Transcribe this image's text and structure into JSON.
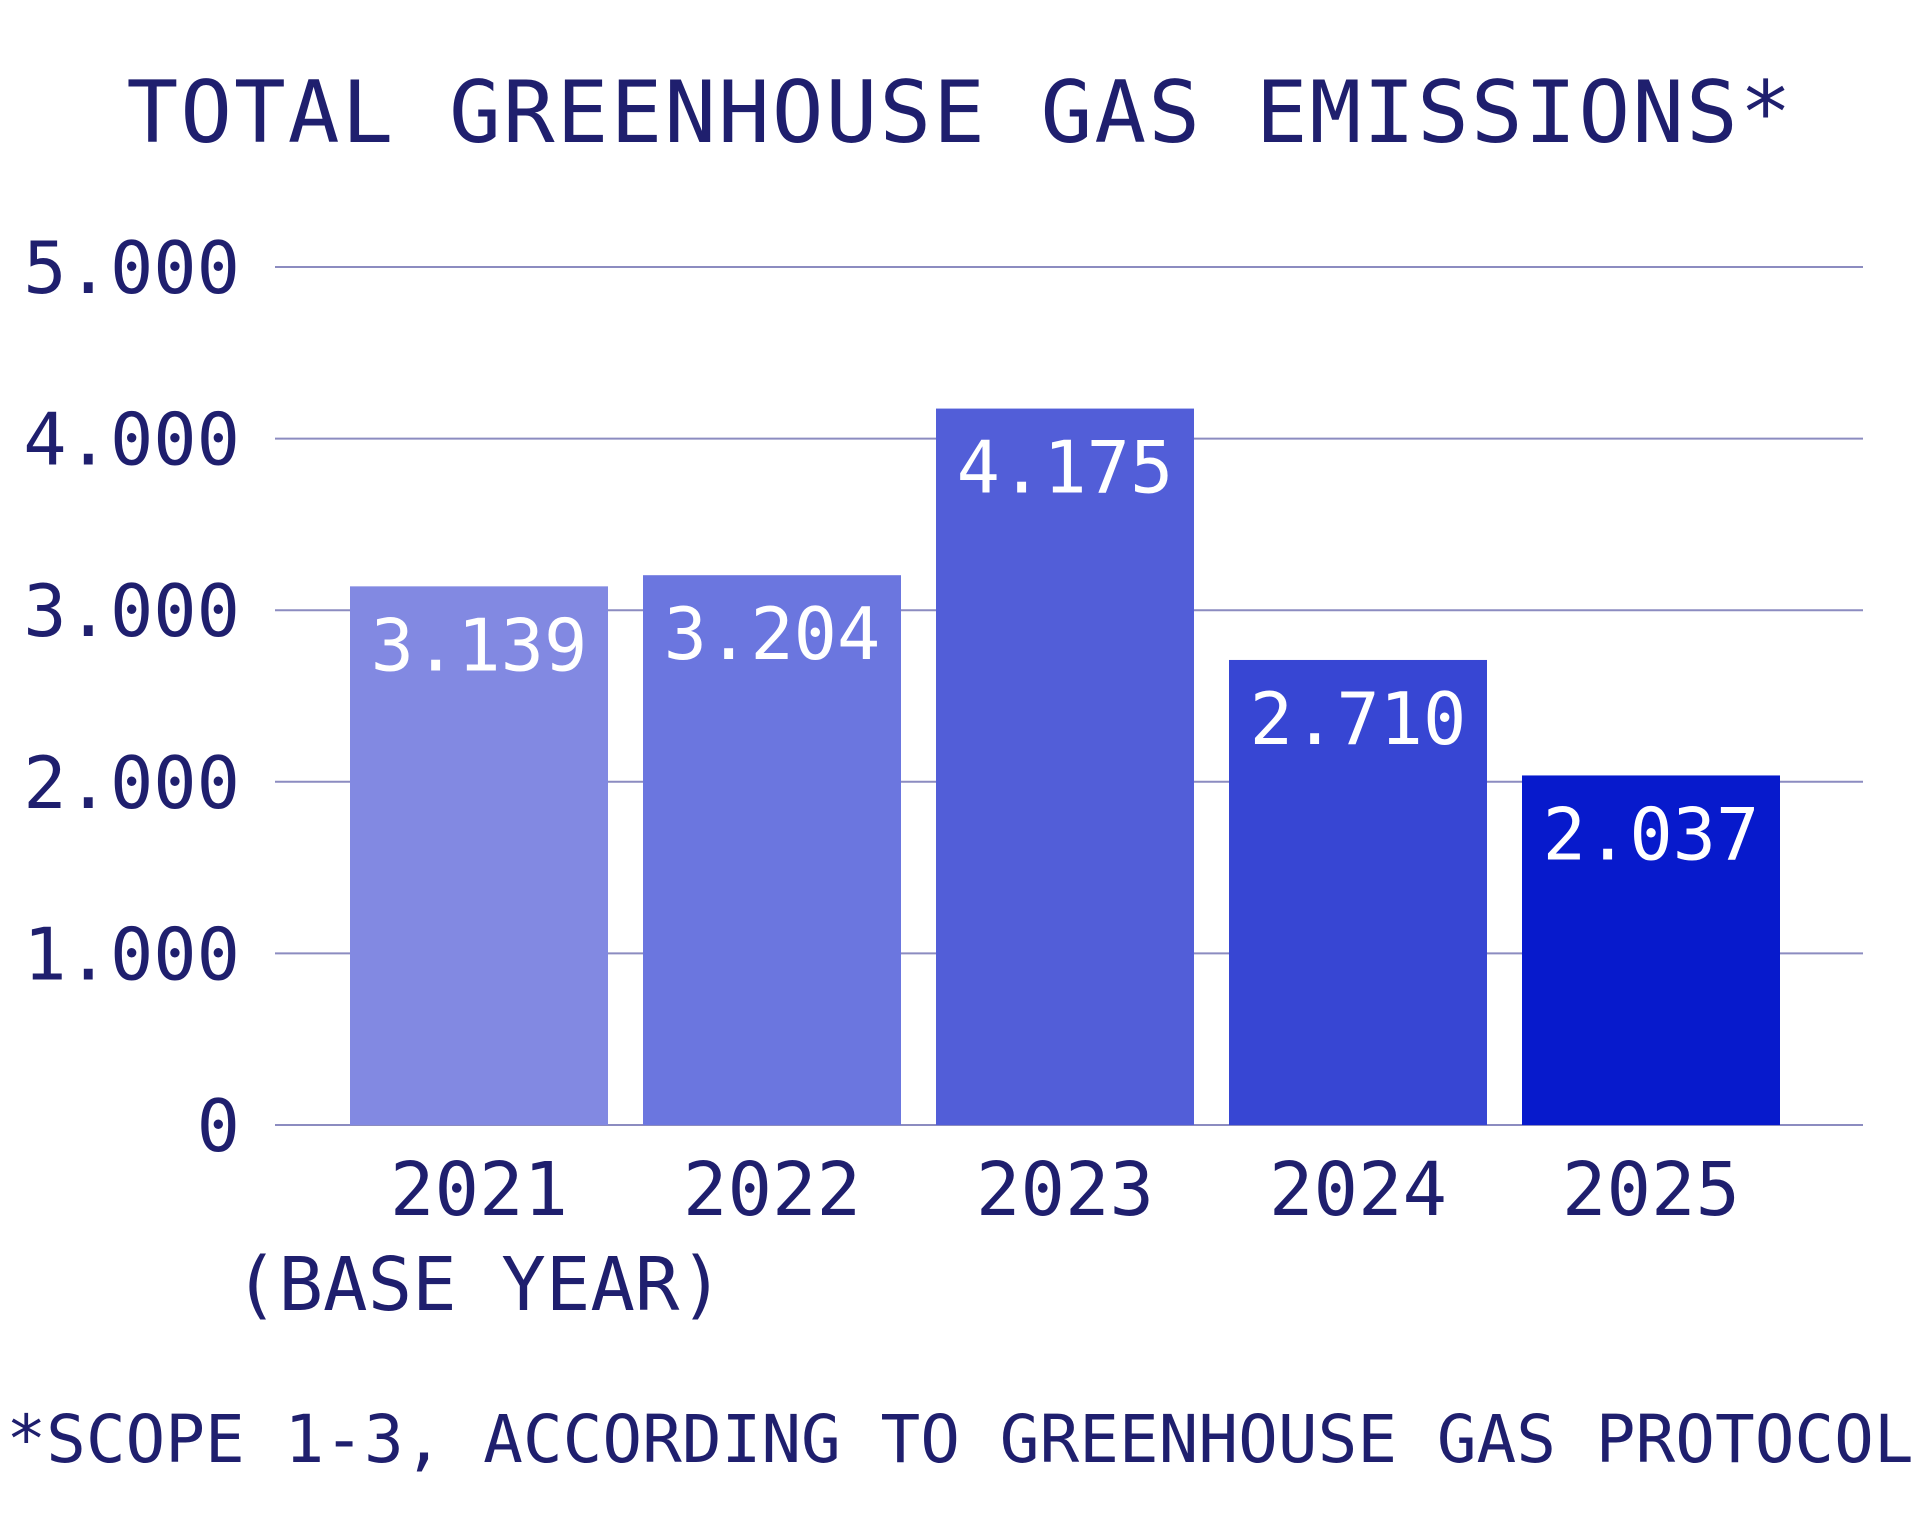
{
  "chart_data": {
    "type": "bar",
    "title": "TOTAL GREENHOUSE GAS EMISSIONS*",
    "categories": [
      "2021",
      "2022",
      "2023",
      "2024",
      "2025"
    ],
    "category_sublabels": [
      "(BASE YEAR)",
      "",
      "",
      "",
      ""
    ],
    "values": [
      3139,
      3204,
      4175,
      2710,
      2037
    ],
    "value_labels": [
      "3.139",
      "3.204",
      "4.175",
      "2.710",
      "2.037"
    ],
    "ylim": [
      0,
      5000
    ],
    "yticks": [
      0,
      1000,
      2000,
      3000,
      4000,
      5000
    ],
    "ytick_labels": [
      "0",
      "1.000",
      "2.000",
      "3.000",
      "4.000",
      "5.000"
    ],
    "xlabel": "",
    "ylabel": "",
    "grid": true,
    "legend": "none",
    "bar_colors": [
      "#8289e2",
      "#6b76df",
      "#525ed8",
      "#3746d3",
      "#071acc"
    ],
    "footnote": "*SCOPE 1-3, ACCORDING TO GREENHOUSE GAS PROTOCOL"
  },
  "colors": {
    "text": "#1f1f6e",
    "grid": "#8c8cc0",
    "value_label": "#ffffff"
  }
}
